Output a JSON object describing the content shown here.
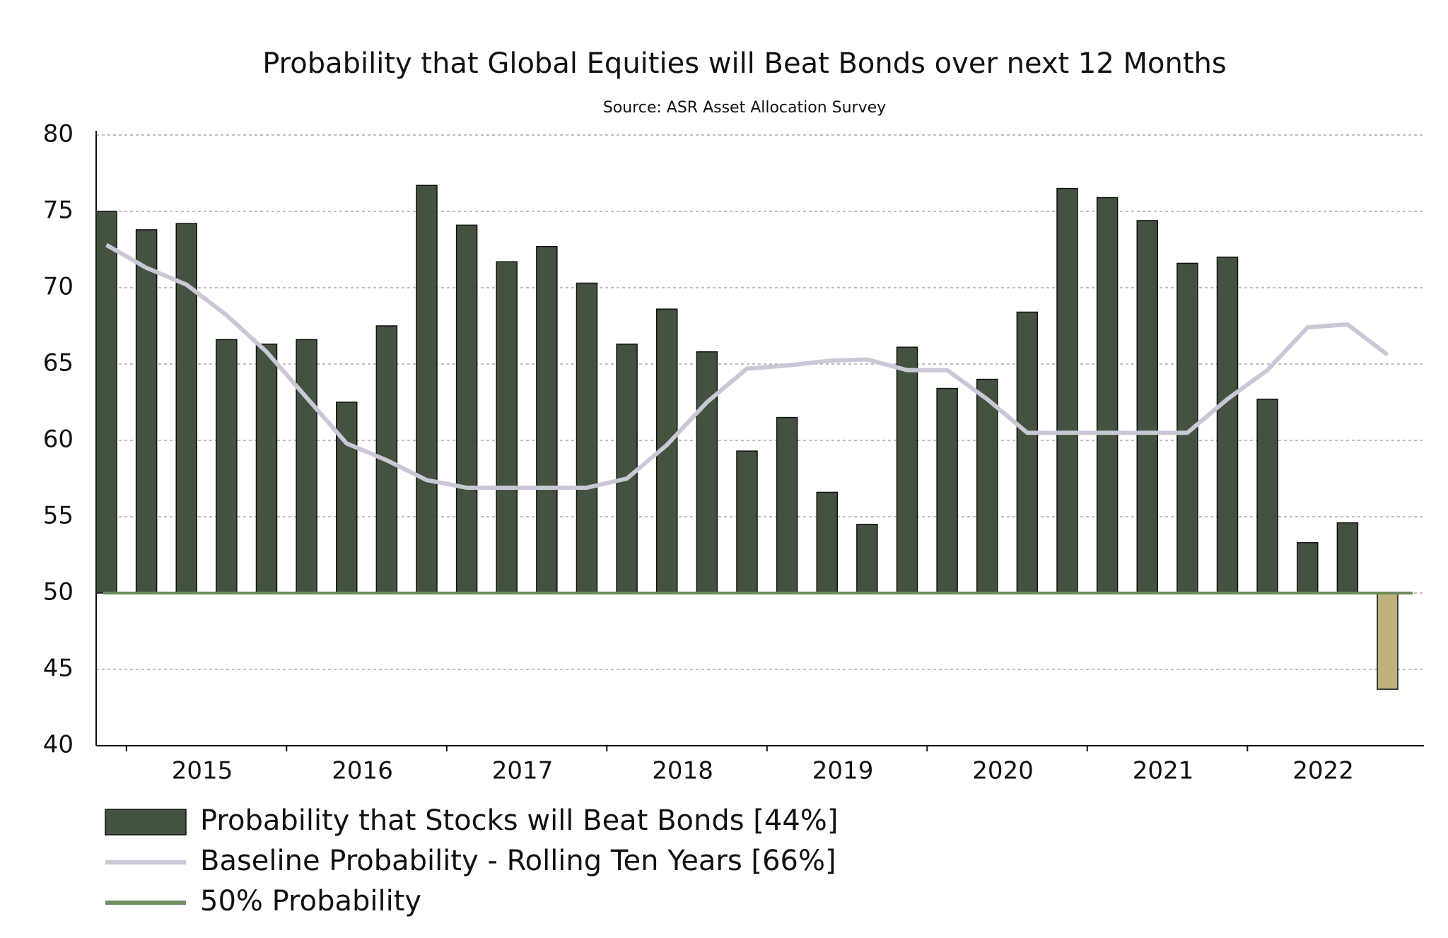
{
  "chart_data": {
    "type": "bar",
    "title": "Probability that Global Equities will Beat Bonds over next 12 Months",
    "subtitle": "Source: ASR Asset Allocation Survey",
    "year_labels": [
      "2015",
      "2016",
      "2017",
      "2018",
      "2019",
      "2020",
      "2021",
      "2022"
    ],
    "series": [
      {
        "name": "Probability that Stocks will Beat Bonds  [44%]",
        "type": "bar",
        "color": "#435340",
        "below_color": "#bfb07c",
        "values": [
          75,
          73.8,
          74.2,
          66.6,
          66.3,
          66.6,
          62.5,
          67.5,
          76.7,
          74.1,
          71.7,
          72.7,
          70.3,
          66.3,
          68.6,
          65.8,
          59.3,
          61.5,
          56.6,
          54.5,
          66.1,
          63.4,
          64,
          68.4,
          76.5,
          75.9,
          74.4,
          71.6,
          72,
          62.7,
          53.3,
          54.6,
          43.7
        ]
      },
      {
        "name": "Baseline Probability - Rolling Ten Years [66%]",
        "type": "line",
        "color": "#c8c8d6",
        "values": [
          72.8,
          71.3,
          70.2,
          68.2,
          65.8,
          62.8,
          59.8,
          58.7,
          57.4,
          56.9,
          56.9,
          56.9,
          56.9,
          57.5,
          59.7,
          62.5,
          64.7,
          64.9,
          65.2,
          65.3,
          64.6,
          64.6,
          62.7,
          60.5,
          60.5,
          60.5,
          60.5,
          60.5,
          62.7,
          64.6,
          67.4,
          67.6,
          65.6
        ]
      }
    ],
    "reference_line": {
      "name": "50% Probability",
      "value": 50,
      "color": "#6e8c5c"
    },
    "ylim": [
      40,
      80
    ],
    "yticks": [
      40,
      45,
      50,
      55,
      60,
      65,
      70,
      75,
      80
    ],
    "grid": true
  }
}
